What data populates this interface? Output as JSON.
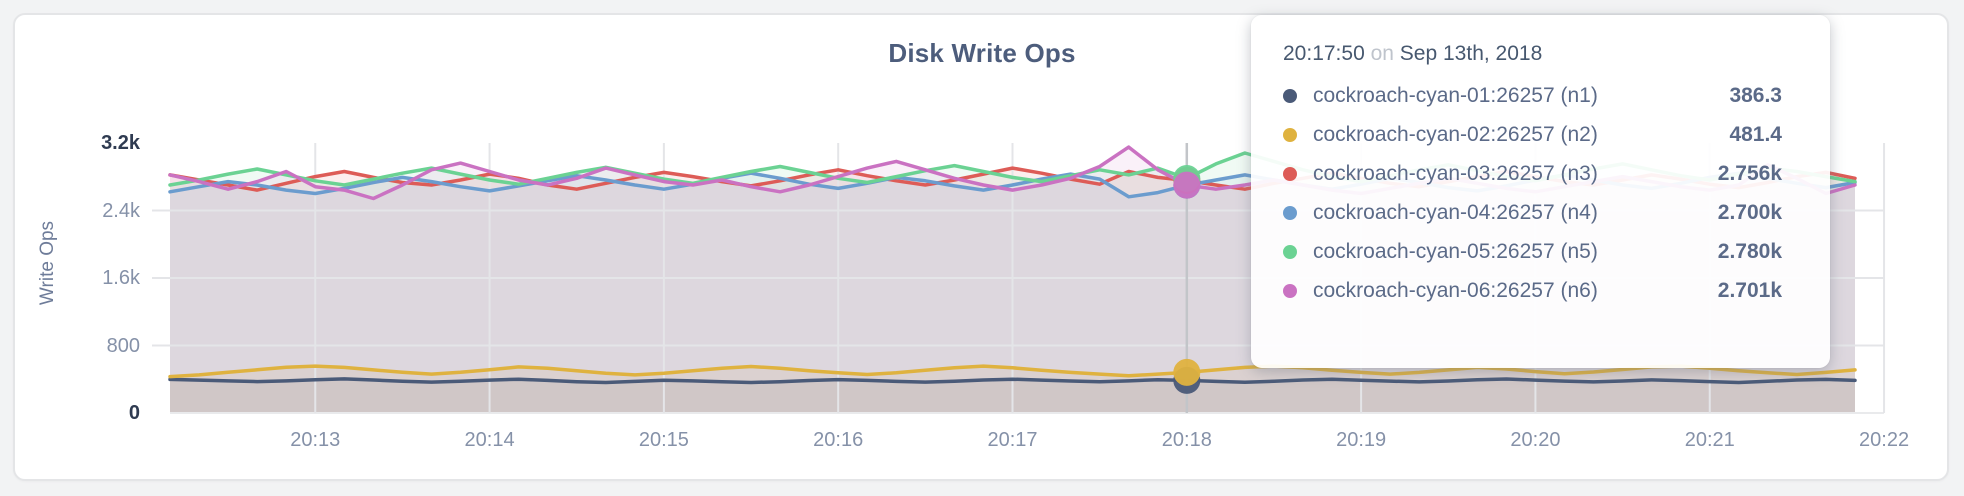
{
  "page": {
    "background": "#f2f3f4",
    "card_background": "#ffffff"
  },
  "chart_data": {
    "type": "area",
    "title": "Disk Write Ops",
    "ylabel": "Write Ops",
    "xlabel": "",
    "grid": true,
    "legend_position": "hover-tooltip",
    "ylim": [
      0,
      3200
    ],
    "y_ticks": [
      {
        "value": 0,
        "label": "0",
        "strong": true
      },
      {
        "value": 800,
        "label": "800",
        "strong": false
      },
      {
        "value": 1600,
        "label": "1.6k",
        "strong": false
      },
      {
        "value": 2400,
        "label": "2.4k",
        "strong": false
      },
      {
        "value": 3200,
        "label": "3.2k",
        "strong": true
      }
    ],
    "x_ticks": [
      "20:13",
      "20:14",
      "20:15",
      "20:16",
      "20:17",
      "20:18",
      "20:19",
      "20:20",
      "20:21",
      "20:22"
    ],
    "hover_index": 35,
    "series": [
      {
        "id": "n1",
        "name": "cockroach-cyan-01:26257 (n1)",
        "color": "#4a5a78",
        "values": [
          398,
          390,
          381,
          372,
          380,
          394,
          404,
          391,
          376,
          366,
          376,
          390,
          401,
          386,
          371,
          361,
          374,
          389,
          381,
          370,
          362,
          371,
          385,
          396,
          386,
          375,
          366,
          376,
          391,
          401,
          390,
          379,
          370,
          381,
          395,
          386.3,
          374,
          365,
          376,
          391,
          401,
          389,
          378,
          368,
          379,
          393,
          403,
          390,
          378,
          368,
          379,
          392,
          384,
          372,
          362,
          376,
          391,
          398,
          386
        ]
      },
      {
        "id": "n2",
        "name": "cockroach-cyan-02:26257 (n2)",
        "color": "#dfb23f",
        "values": [
          432,
          452,
          482,
          512,
          542,
          556,
          540,
          511,
          482,
          461,
          482,
          512,
          546,
          531,
          501,
          471,
          451,
          471,
          501,
          531,
          551,
          531,
          501,
          476,
          456,
          476,
          506,
          536,
          556,
          536,
          506,
          481,
          461,
          441,
          461,
          481.4,
          511,
          541,
          556,
          536,
          506,
          481,
          461,
          481,
          511,
          541,
          521,
          491,
          466,
          486,
          516,
          546,
          556,
          531,
          501,
          476,
          456,
          481,
          511
        ]
      },
      {
        "id": "n3",
        "name": "cockroach-cyan-03:26257 (n3)",
        "color": "#dd5c57",
        "values": [
          2822,
          2762,
          2702,
          2642,
          2722,
          2802,
          2862,
          2792,
          2732,
          2702,
          2762,
          2832,
          2782,
          2702,
          2652,
          2722,
          2792,
          2852,
          2802,
          2742,
          2692,
          2752,
          2822,
          2882,
          2812,
          2752,
          2702,
          2762,
          2832,
          2902,
          2842,
          2772,
          2712,
          2862,
          2792,
          2756,
          2702,
          2652,
          2722,
          2782,
          2842,
          2782,
          2722,
          2682,
          2742,
          2802,
          2862,
          2802,
          2742,
          2702,
          2762,
          2822,
          2772,
          2712,
          2672,
          2732,
          2802,
          2852,
          2782
        ]
      },
      {
        "id": "n4",
        "name": "cockroach-cyan-04:26257 (n4)",
        "color": "#6b9cce",
        "values": [
          2622,
          2682,
          2742,
          2702,
          2642,
          2602,
          2662,
          2732,
          2792,
          2742,
          2682,
          2632,
          2692,
          2752,
          2812,
          2762,
          2702,
          2652,
          2712,
          2782,
          2842,
          2782,
          2712,
          2662,
          2722,
          2792,
          2752,
          2692,
          2642,
          2702,
          2772,
          2832,
          2772,
          2562,
          2612,
          2700,
          2762,
          2822,
          2762,
          2702,
          2652,
          2712,
          2782,
          2732,
          2672,
          2632,
          2692,
          2762,
          2822,
          2762,
          2702,
          2662,
          2722,
          2792,
          2842,
          2782,
          2722,
          2672,
          2732
        ]
      },
      {
        "id": "n5",
        "name": "cockroach-cyan-05:26257 (n5)",
        "color": "#6bd293",
        "values": [
          2702,
          2762,
          2832,
          2892,
          2822,
          2752,
          2702,
          2772,
          2842,
          2902,
          2832,
          2762,
          2712,
          2782,
          2852,
          2912,
          2842,
          2772,
          2722,
          2792,
          2862,
          2922,
          2852,
          2782,
          2732,
          2802,
          2872,
          2932,
          2862,
          2792,
          2742,
          2812,
          2882,
          2822,
          2902,
          2780,
          2952,
          3082,
          2982,
          2882,
          2802,
          2742,
          2812,
          2882,
          2942,
          2872,
          2802,
          2752,
          2822,
          2892,
          2952,
          2882,
          2812,
          2762,
          2832,
          2902,
          2862,
          2802,
          2742
        ]
      },
      {
        "id": "n6",
        "name": "cockroach-cyan-06:26257 (n6)",
        "color": "#ca72c2",
        "values": [
          2822,
          2742,
          2652,
          2742,
          2862,
          2682,
          2642,
          2542,
          2702,
          2882,
          2962,
          2862,
          2762,
          2702,
          2782,
          2902,
          2822,
          2742,
          2702,
          2762,
          2682,
          2622,
          2702,
          2802,
          2902,
          2982,
          2882,
          2782,
          2702,
          2642,
          2702,
          2782,
          2922,
          3152,
          2882,
          2701,
          2652,
          2702,
          2762,
          2702,
          2642,
          2602,
          2662,
          2722,
          2782,
          2722,
          2662,
          2622,
          2682,
          2742,
          2802,
          2742,
          2682,
          2642,
          2702,
          2942,
          2782,
          2602,
          2702
        ]
      }
    ]
  },
  "tooltip": {
    "time": "20:17:50",
    "connector": "on",
    "date": "Sep 13th, 2018",
    "rows": [
      {
        "id": "n1",
        "name": "cockroach-cyan-01:26257 (n1)",
        "value": "386.3",
        "color": "#4a5a78"
      },
      {
        "id": "n2",
        "name": "cockroach-cyan-02:26257 (n2)",
        "value": "481.4",
        "color": "#dfb23f"
      },
      {
        "id": "n3",
        "name": "cockroach-cyan-03:26257 (n3)",
        "value": "2.756k",
        "color": "#dd5c57"
      },
      {
        "id": "n4",
        "name": "cockroach-cyan-04:26257 (n4)",
        "value": "2.700k",
        "color": "#6b9cce"
      },
      {
        "id": "n5",
        "name": "cockroach-cyan-05:26257 (n5)",
        "value": "2.780k",
        "color": "#6bd293"
      },
      {
        "id": "n6",
        "name": "cockroach-cyan-06:26257 (n6)",
        "value": "2.701k",
        "color": "#ca72c2"
      }
    ]
  }
}
